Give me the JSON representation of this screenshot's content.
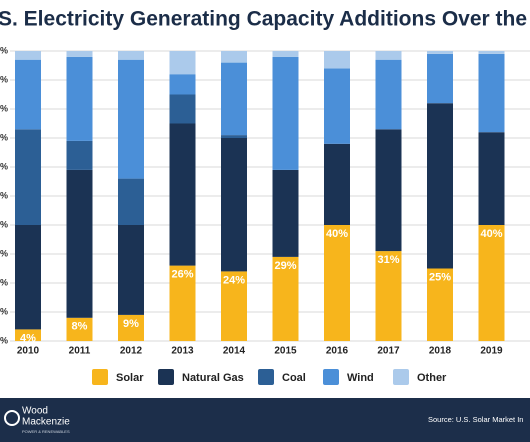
{
  "chart_data": {
    "type": "stacked_bar",
    "title": "S. Electricity Generating Capacity Additions Over the Last D",
    "categories": [
      "2010",
      "2011",
      "2012",
      "2013",
      "2014",
      "2015",
      "2016",
      "2017",
      "2018",
      "2019"
    ],
    "series": [
      {
        "name": "Solar",
        "color": "#f7b51c",
        "values": [
          4,
          8,
          9,
          26,
          24,
          29,
          40,
          31,
          25,
          40
        ],
        "value_labels": [
          "4%",
          "8%",
          "9%",
          "26%",
          "24%",
          "29%",
          "40%",
          "31%",
          "25%",
          "40%"
        ]
      },
      {
        "name": "Natural Gas",
        "color": "#1b3354",
        "values": [
          36,
          51,
          31,
          49,
          46,
          30,
          28,
          42,
          57,
          32
        ]
      },
      {
        "name": "Coal",
        "color": "#2c5f95",
        "values": [
          33,
          10,
          16,
          10,
          1,
          0,
          0,
          0,
          0,
          0
        ]
      },
      {
        "name": "Wind",
        "color": "#4b8fd8",
        "values": [
          24,
          29,
          41,
          7,
          25,
          39,
          26,
          24,
          17,
          27
        ]
      },
      {
        "name": "Other",
        "color": "#abcaeb",
        "values": [
          3,
          2,
          3,
          8,
          4,
          2,
          6,
          3,
          1,
          1
        ]
      }
    ],
    "ylim": [
      0,
      100
    ],
    "yticks": [
      {
        "value": 0,
        "label": "%"
      },
      {
        "value": 10,
        "label": "%"
      },
      {
        "value": 20,
        "label": "%"
      },
      {
        "value": 30,
        "label": "%"
      },
      {
        "value": 40,
        "label": "%"
      },
      {
        "value": 50,
        "label": "%"
      },
      {
        "value": 60,
        "label": "%"
      },
      {
        "value": 70,
        "label": "%"
      },
      {
        "value": 80,
        "label": "%"
      },
      {
        "value": 90,
        "label": "%"
      },
      {
        "value": 100,
        "label": "%"
      }
    ],
    "grid": true
  },
  "footer": {
    "brand_line1": "Wood",
    "brand_line2": "Mackenzie",
    "brand_tagline": "POWER & RENEWABLES",
    "source": "Source: U.S. Solar Market In"
  }
}
